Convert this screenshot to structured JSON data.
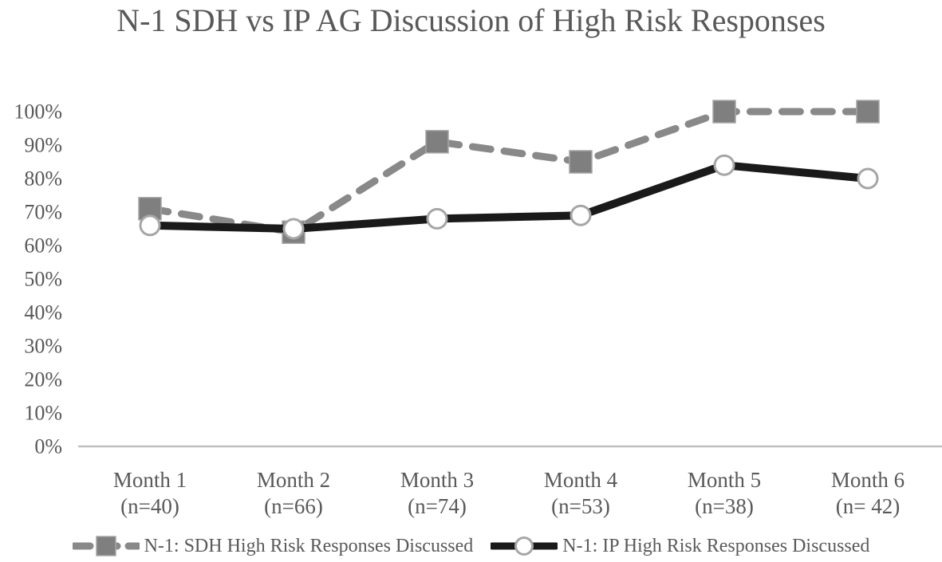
{
  "chart_data": {
    "type": "line",
    "title": "N-1 SDH vs IP AG Discussion of High Risk Responses",
    "categories": [
      "Month 1",
      "Month 2",
      "Month 3",
      "Month 4",
      "Month 5",
      "Month 6"
    ],
    "category_sublabels": [
      "(n=40)",
      "(n=66)",
      "(n=74)",
      "(n=53)",
      "(n=38)",
      "(n= 42)"
    ],
    "series": [
      {
        "name": "N-1: SDH High Risk Responses Discussed",
        "values": [
          71,
          64,
          91,
          85,
          100,
          100
        ],
        "line_color": "#898989",
        "marker_color": "#7f7f7f",
        "marker_edge_color": "#a6a6a6",
        "line_style": "dashed",
        "marker": "square"
      },
      {
        "name": "N-1: IP High Risk Responses Discussed",
        "values": [
          66,
          65,
          68,
          69,
          84,
          80
        ],
        "line_color": "#1a1a1a",
        "marker_color": "#ffffff",
        "marker_edge_color": "#a6a6a6",
        "line_style": "solid",
        "marker": "circle"
      }
    ],
    "ylim": [
      0,
      100
    ],
    "ytick_step": 10,
    "ytick_suffix": "%",
    "ytick_labels": [
      "0%",
      "10%",
      "20%",
      "30%",
      "40%",
      "50%",
      "60%",
      "70%",
      "80%",
      "90%",
      "100%"
    ],
    "xlabel": "",
    "ylabel": "",
    "grid": false,
    "legend_position": "bottom",
    "axis_color": "#bfbfbf",
    "text_color": "#595959"
  }
}
